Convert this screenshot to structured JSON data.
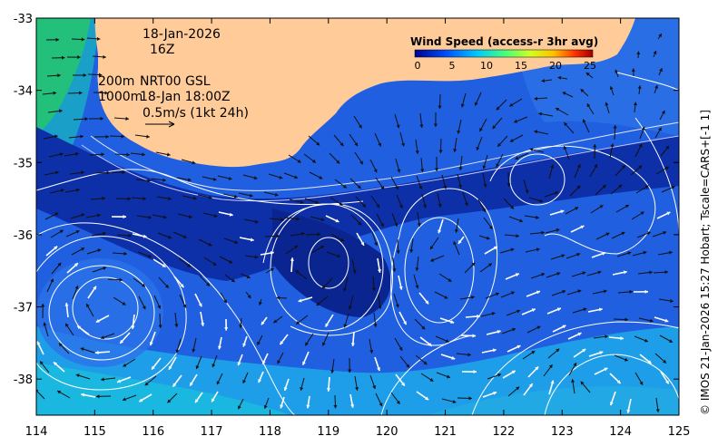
{
  "map": {
    "lon_ticks": [
      "114",
      "115",
      "116",
      "117",
      "118",
      "119",
      "120",
      "121",
      "122",
      "123",
      "124",
      "125"
    ],
    "lat_ticks": [
      "-33",
      "-34",
      "-35",
      "-36",
      "-37",
      "-38"
    ],
    "lon_range": [
      114,
      125
    ],
    "lat_range": [
      -38.5,
      -33
    ],
    "colors": {
      "land": "#ffcc99",
      "deep": "#0a2a9a",
      "mid": "#1f5fe0",
      "shallow": "#1ab8e0",
      "green": "#22c07a"
    }
  },
  "annotations": {
    "date": "18-Jan-2026",
    "hour": "16Z",
    "depth_200": "200m",
    "depth_1000": "1000m",
    "product": "NRT00 GSL",
    "obs_time": "18-Jan 18:00Z",
    "scale": "0.5m/s (1kt 24h)"
  },
  "colorbar": {
    "title": "Wind Speed (access-r 3hr avg)",
    "ticks": [
      "0",
      "5",
      "10",
      "15",
      "20",
      "25"
    ]
  },
  "credit": "© IMOS 21-Jan-2026 15:27 Hobart; Tscale=CARS+[-1 1]"
}
